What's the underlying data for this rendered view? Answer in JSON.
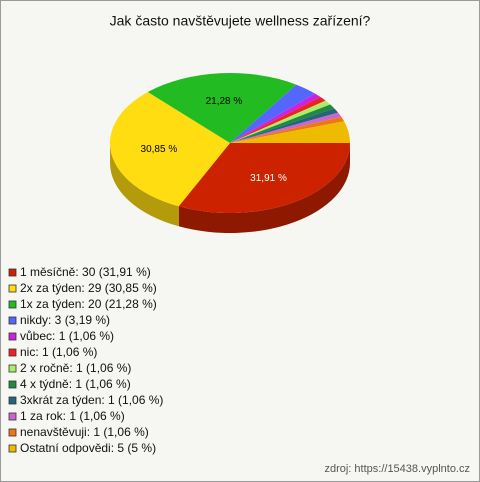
{
  "chart_data": {
    "type": "pie3d",
    "title": "Jak často navštěvujete wellness zařízení?",
    "categories": [
      "1 měsíčně: 30 (31,91 %)",
      "2x za týden: 29 (30,85 %)",
      "1x za týden: 20 (21,28 %)",
      "nikdy: 3 (3,19 %)",
      "vůbec: 1 (1,06 %)",
      "nic: 1 (1,06 %)",
      "2 x ročně: 1 (1,06 %)",
      "4 x týdně: 1 (1,06 %)",
      "3xkrát za týden: 1 (1,06 %)",
      "1 za rok: 1 (1,06 %)",
      "nenavštěvuji: 1 (1,06 %)",
      "Ostatní odpovědi: 5 (5 %)"
    ],
    "values": [
      31.91,
      30.85,
      21.28,
      3.19,
      1.06,
      1.06,
      1.06,
      1.06,
      1.06,
      1.06,
      1.06,
      5
    ],
    "value_labels": [
      "31,91 %",
      "30,85 %",
      "21,28 %",
      null,
      null,
      null,
      null,
      null,
      null,
      null,
      null,
      null
    ],
    "colors": [
      "#cc2200",
      "#ffdd11",
      "#22bb22",
      "#5566ff",
      "#cc22dd",
      "#ee2222",
      "#aaee66",
      "#228844",
      "#226677",
      "#cc66cc",
      "#ee7711",
      "#eebb00"
    ],
    "source": "zdroj: https://15438.vyplnto.cz"
  }
}
